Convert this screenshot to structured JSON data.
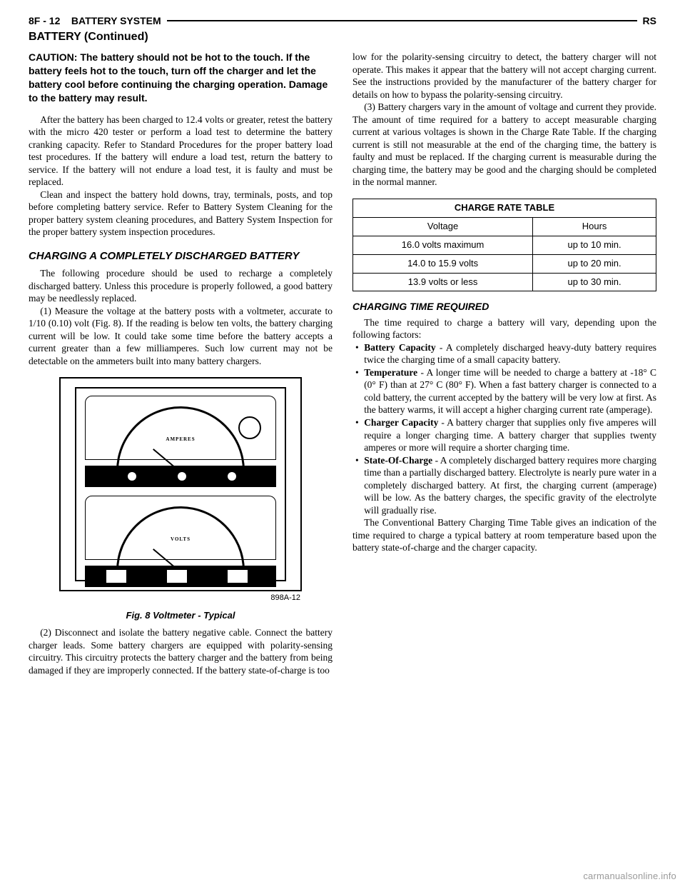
{
  "header": {
    "left": "8F - 12    BATTERY SYSTEM",
    "right": "RS"
  },
  "continued": "BATTERY (Continued)",
  "left": {
    "caution": "CAUTION: The battery should not be hot to the touch. If the battery feels hot to the touch, turn off the charger and let the battery cool before continuing the charging operation. Damage to the battery may result.",
    "p1": "After the battery has been charged to 12.4 volts or greater, retest the battery with the micro 420 tester or perform a load test to determine the battery cranking capacity. Refer to Standard Procedures for the proper battery load test procedures. If the battery will endure a load test, return the battery to service. If the battery will not endure a load test, it is faulty and must be replaced.",
    "p2": "Clean and inspect the battery hold downs, tray, terminals, posts, and top before completing battery service. Refer to Battery System Cleaning for the proper battery system cleaning procedures, and Battery System Inspection for the proper battery system inspection procedures.",
    "h1": "CHARGING A COMPLETELY DISCHARGED BATTERY",
    "p3": "The following procedure should be used to recharge a completely discharged battery. Unless this procedure is properly followed, a good battery may be needlessly replaced.",
    "p4": "(1) Measure the voltage at the battery posts with a voltmeter, accurate to 1/10 (0.10) volt (Fig. 8). If the reading is below ten volts, the battery charging current will be low. It could take some time before the battery accepts a current greater than a few milliamperes. Such low current may not be detectable on the ammeters built into many battery chargers.",
    "fig": {
      "id": "898A-12",
      "caption": "Fig. 8 Voltmeter - Typical",
      "top_label": "AMPERES",
      "bot_label": "VOLTS"
    },
    "p5": "(2) Disconnect and isolate the battery negative cable. Connect the battery charger leads. Some battery chargers are equipped with polarity-sensing circuitry. This circuitry protects the battery charger and the battery from being damaged if they are improperly connected. If the battery state-of-charge is too"
  },
  "right": {
    "p1": "low for the polarity-sensing circuitry to detect, the battery charger will not operate. This makes it appear that the battery will not accept charging current. See the instructions provided by the manufacturer of the battery charger for details on how to bypass the polarity-sensing circuitry.",
    "p2": "(3) Battery chargers vary in the amount of voltage and current they provide. The amount of time required for a battery to accept measurable charging current at various voltages is shown in the Charge Rate Table. If the charging current is still not measurable at the end of the charging time, the battery is faulty and must be replaced. If the charging current is measurable during the charging time, the battery may be good and the charging should be completed in the normal manner.",
    "table": {
      "title": "CHARGE RATE TABLE",
      "col1": "Voltage",
      "col2": "Hours",
      "rows": [
        {
          "v": "16.0 volts maximum",
          "h": "up to 10 min."
        },
        {
          "v": "14.0 to 15.9 volts",
          "h": "up to 20 min."
        },
        {
          "v": "13.9 volts or less",
          "h": "up to 30 min."
        }
      ]
    },
    "h2": "CHARGING TIME REQUIRED",
    "p3": "The time required to charge a battery will vary, depending upon the following factors:",
    "bullets": [
      {
        "lead": "Battery Capacity",
        "text": " - A completely discharged heavy-duty battery requires twice the charging time of a small capacity battery."
      },
      {
        "lead": "Temperature",
        "text": " - A longer time will be needed to charge a battery at -18° C (0° F) than at 27° C (80° F). When a fast battery charger is connected to a cold battery, the current accepted by the battery will be very low at first. As the battery warms, it will accept a higher charging current rate (amperage)."
      },
      {
        "lead": "Charger Capacity",
        "text": " - A battery charger that supplies only five amperes will require a longer charging time. A battery charger that supplies twenty amperes or more will require a shorter charging time."
      },
      {
        "lead": "State-Of-Charge",
        "text": " - A completely discharged battery requires more charging time than a partially discharged battery. Electrolyte is nearly pure water in a completely discharged battery. At first, the charging current (amperage) will be low. As the battery charges, the specific gravity of the electrolyte will gradually rise."
      }
    ],
    "p4": "The Conventional Battery Charging Time Table gives an indication of the time required to charge a typical battery at room temperature based upon the battery state-of-charge and the charger capacity."
  },
  "footer": "carmanualsonline.info"
}
